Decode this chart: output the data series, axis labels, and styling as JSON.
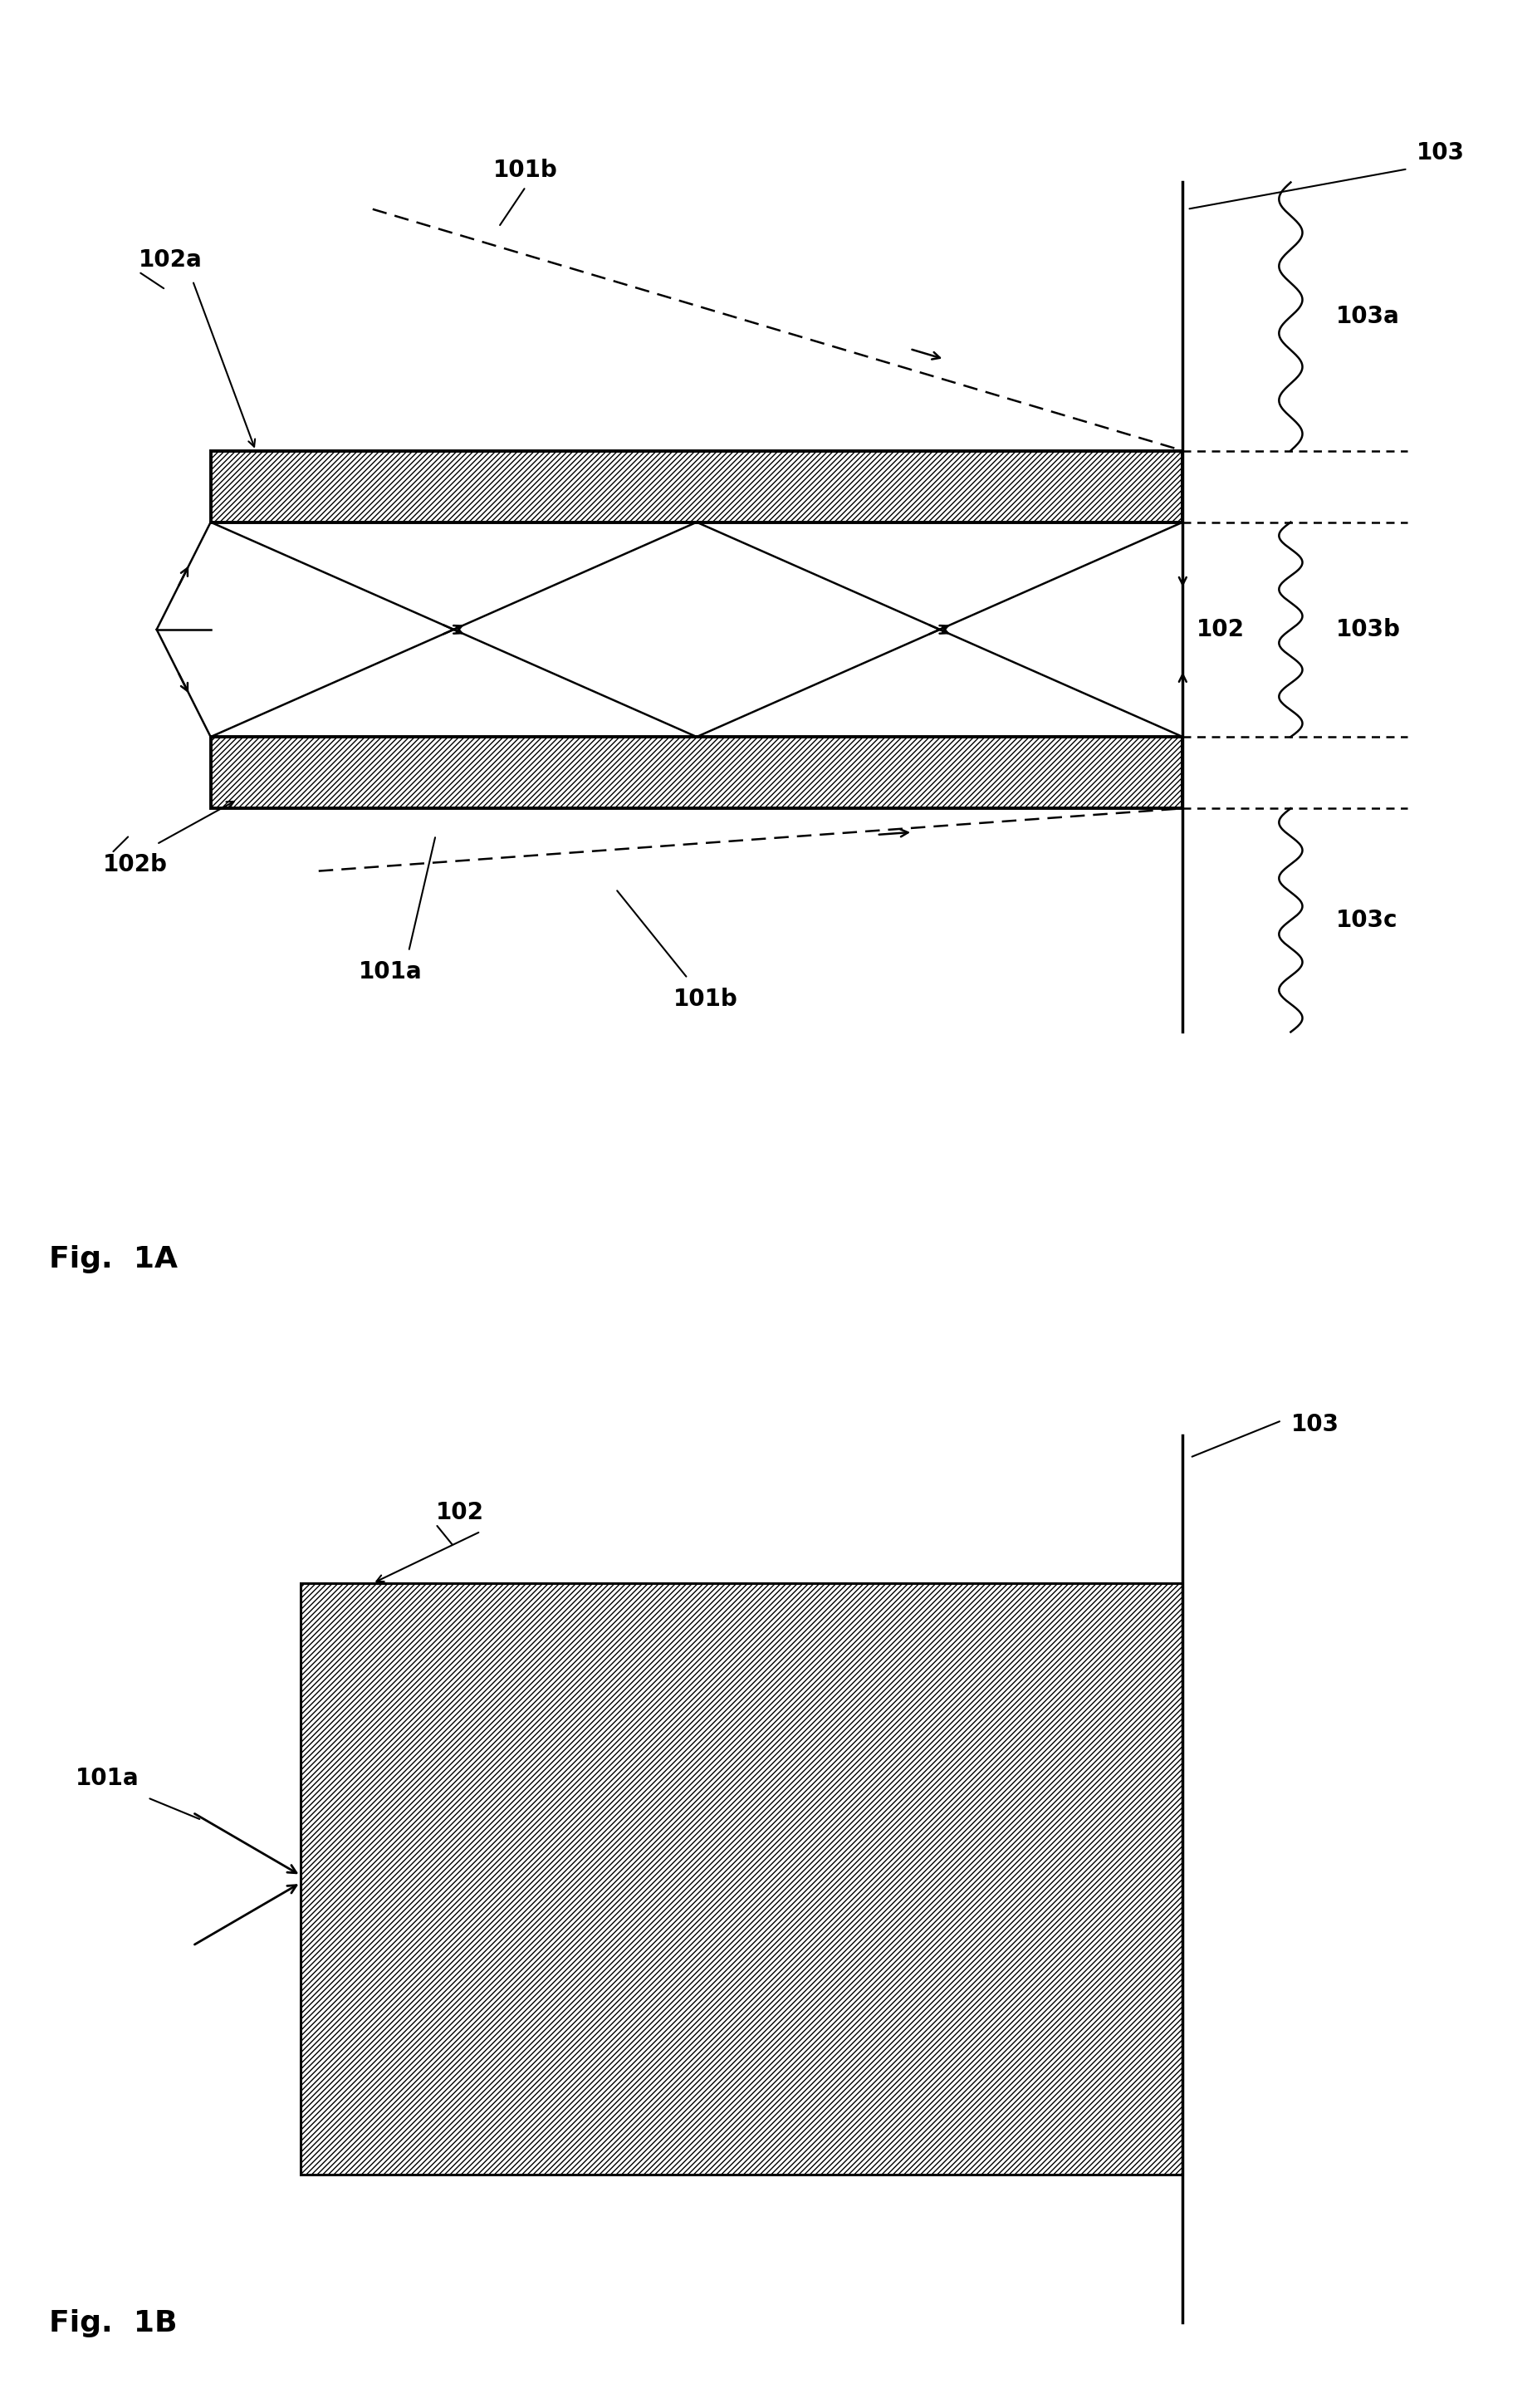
{
  "fig_width": 18.45,
  "fig_height": 28.99,
  "bg_color": "#ffffff",
  "lc": "#000000",
  "fig1a_label": "Fig.  1A",
  "fig1b_label": "Fig.  1B",
  "l103_1a": "103",
  "l101b_top": "101b",
  "l102a": "102a",
  "l103a": "103a",
  "l102_mid": "102",
  "l103b": "103b",
  "l102b": "102b",
  "l101a_1a": "101a",
  "l101b_bot": "101b",
  "l103c": "103c",
  "l102_1b": "102",
  "l101a_1b": "101a",
  "l103_1b": "103"
}
